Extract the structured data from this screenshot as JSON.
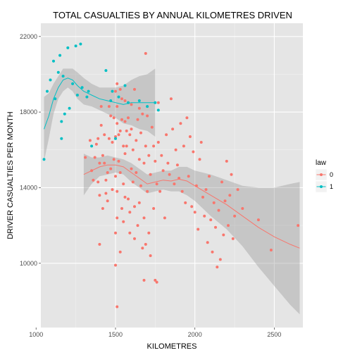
{
  "chart_data": {
    "type": "scatter",
    "title": "TOTAL CASUALTIES BY ANNUAL KILOMETRES DRIVEN",
    "xlabel": "KILOMETRES",
    "ylabel": "DRIVER CASUALTIES PER MONTH",
    "xlim": [
      1030,
      2680
    ],
    "ylim": [
      6600,
      22700
    ],
    "x_ticks": [
      1000,
      1500,
      2000,
      2500
    ],
    "x_tick_labels": [
      "1000",
      "1500",
      "2000",
      "2500"
    ],
    "y_ticks": [
      10000,
      14000,
      18000,
      22000
    ],
    "y_tick_labels": [
      "10000",
      "14000",
      "18000",
      "22000"
    ],
    "grid": true,
    "legend": {
      "title": "law",
      "position": "right",
      "entries": [
        {
          "label": "0",
          "color": "#f8766d"
        },
        {
          "label": "1",
          "color": "#00bfc4"
        }
      ]
    },
    "series": [
      {
        "name": "0",
        "color": "#f8766d",
        "points": [
          [
            1310,
            15600
          ],
          [
            1340,
            16500
          ],
          [
            1350,
            14900
          ],
          [
            1360,
            14400
          ],
          [
            1370,
            15600
          ],
          [
            1380,
            16300
          ],
          [
            1390,
            16600
          ],
          [
            1390,
            14300
          ],
          [
            1400,
            13600
          ],
          [
            1400,
            15300
          ],
          [
            1410,
            17300
          ],
          [
            1410,
            18300
          ],
          [
            1420,
            12900
          ],
          [
            1420,
            15700
          ],
          [
            1430,
            16800
          ],
          [
            1430,
            15300
          ],
          [
            1440,
            14400
          ],
          [
            1440,
            13700
          ],
          [
            1450,
            13300
          ],
          [
            1450,
            14800
          ],
          [
            1460,
            16600
          ],
          [
            1460,
            18300
          ],
          [
            1470,
            17800
          ],
          [
            1470,
            15000
          ],
          [
            1480,
            13900
          ],
          [
            1480,
            16400
          ],
          [
            1490,
            17700
          ],
          [
            1490,
            15500
          ],
          [
            1500,
            19100
          ],
          [
            1500,
            14600
          ],
          [
            1500,
            11600
          ],
          [
            1500,
            16700
          ],
          [
            1510,
            18300
          ],
          [
            1510,
            17400
          ],
          [
            1510,
            19500
          ],
          [
            1510,
            13800
          ],
          [
            1510,
            12400
          ],
          [
            1520,
            16800
          ],
          [
            1520,
            15400
          ],
          [
            1530,
            19200
          ],
          [
            1530,
            17000
          ],
          [
            1530,
            14800
          ],
          [
            1540,
            17600
          ],
          [
            1540,
            18700
          ],
          [
            1540,
            12900
          ],
          [
            1550,
            16200
          ],
          [
            1550,
            14200
          ],
          [
            1550,
            12200
          ],
          [
            1560,
            18600
          ],
          [
            1560,
            17500
          ],
          [
            1560,
            15800
          ],
          [
            1560,
            13500
          ],
          [
            1570,
            17000
          ],
          [
            1570,
            16200
          ],
          [
            1580,
            18500
          ],
          [
            1580,
            17700
          ],
          [
            1580,
            13400
          ],
          [
            1590,
            16800
          ],
          [
            1590,
            11600
          ],
          [
            1590,
            12700
          ],
          [
            1600,
            18400
          ],
          [
            1600,
            17100
          ],
          [
            1600,
            15000
          ],
          [
            1610,
            16000
          ],
          [
            1610,
            14300
          ],
          [
            1620,
            19200
          ],
          [
            1620,
            13000
          ],
          [
            1620,
            11300
          ],
          [
            1630,
            16500
          ],
          [
            1630,
            14800
          ],
          [
            1640,
            17600
          ],
          [
            1640,
            12000
          ],
          [
            1650,
            18200
          ],
          [
            1650,
            15500
          ],
          [
            1650,
            13200
          ],
          [
            1660,
            16900
          ],
          [
            1660,
            14100
          ],
          [
            1670,
            17900
          ],
          [
            1670,
            10800
          ],
          [
            1680,
            15300
          ],
          [
            1680,
            12400
          ],
          [
            1690,
            21100
          ],
          [
            1690,
            16200
          ],
          [
            1700,
            17800
          ],
          [
            1700,
            13800
          ],
          [
            1710,
            15700
          ],
          [
            1710,
            11600
          ],
          [
            1720,
            14700
          ],
          [
            1720,
            10400
          ],
          [
            1730,
            17200
          ],
          [
            1740,
            16200
          ],
          [
            1740,
            12900
          ],
          [
            1750,
            15400
          ],
          [
            1760,
            14200
          ],
          [
            1770,
            18500
          ],
          [
            1770,
            16400
          ],
          [
            1780,
            13800
          ],
          [
            1790,
            15700
          ],
          [
            1800,
            14900
          ],
          [
            1810,
            12400
          ],
          [
            1820,
            16800
          ],
          [
            1830,
            15300
          ],
          [
            1840,
            14700
          ],
          [
            1850,
            18700
          ],
          [
            1860,
            17100
          ],
          [
            1870,
            14200
          ],
          [
            1880,
            16000
          ],
          [
            1890,
            15200
          ],
          [
            1900,
            14500
          ],
          [
            1910,
            17400
          ],
          [
            1920,
            13800
          ],
          [
            1930,
            16200
          ],
          [
            1940,
            13200
          ],
          [
            1950,
            17700
          ],
          [
            1960,
            14600
          ],
          [
            1970,
            16700
          ],
          [
            1980,
            13000
          ],
          [
            1990,
            15900
          ],
          [
            2000,
            12700
          ],
          [
            2010,
            14100
          ],
          [
            2020,
            11800
          ],
          [
            2030,
            15500
          ],
          [
            2040,
            16400
          ],
          [
            2050,
            13500
          ],
          [
            2060,
            12500
          ],
          [
            2070,
            13900
          ],
          [
            2080,
            11100
          ],
          [
            2090,
            14600
          ],
          [
            2100,
            12300
          ],
          [
            2110,
            10600
          ],
          [
            2120,
            13200
          ],
          [
            2130,
            11900
          ],
          [
            2140,
            9800
          ],
          [
            2150,
            12800
          ],
          [
            2160,
            10200
          ],
          [
            2170,
            14300
          ],
          [
            2180,
            11500
          ],
          [
            2190,
            13300
          ],
          [
            2200,
            15400
          ],
          [
            2210,
            12000
          ],
          [
            2220,
            13600
          ],
          [
            2230,
            14700
          ],
          [
            2240,
            11300
          ],
          [
            2250,
            12500
          ],
          [
            2270,
            13900
          ],
          [
            2300,
            12900
          ],
          [
            2400,
            12300
          ],
          [
            2480,
            10700
          ],
          [
            2650,
            12000
          ],
          [
            1500,
            9900
          ],
          [
            1510,
            7700
          ],
          [
            1680,
            9100
          ],
          [
            1750,
            9100
          ],
          [
            1760,
            9000
          ],
          [
            1690,
            11000
          ],
          [
            1530,
            10600
          ],
          [
            1400,
            11000
          ]
        ],
        "smooth": {
          "x": [
            1300,
            1350,
            1400,
            1450,
            1500,
            1550,
            1600,
            1650,
            1700,
            1750,
            1800,
            1850,
            1900,
            1950,
            2000,
            2100,
            2200,
            2300,
            2400,
            2500,
            2600,
            2660
          ],
          "y": [
            14700,
            14900,
            15100,
            15200,
            15200,
            15100,
            14800,
            14500,
            14200,
            14300,
            14400,
            14350,
            14450,
            14350,
            14100,
            13600,
            13100,
            12500,
            11900,
            11400,
            11000,
            10800
          ],
          "ymin": [
            13600,
            14200,
            14600,
            14700,
            14800,
            14700,
            14300,
            14000,
            13700,
            13800,
            13900,
            13800,
            13800,
            13600,
            13300,
            12500,
            11800,
            10900,
            9800,
            8800,
            7800,
            7300
          ],
          "ymax": [
            15800,
            15600,
            15600,
            15700,
            15600,
            15500,
            15300,
            15000,
            14700,
            14800,
            14900,
            14900,
            15100,
            15100,
            14900,
            14700,
            14400,
            14100,
            14000,
            14000,
            14200,
            14300
          ]
        }
      },
      {
        "name": "1",
        "color": "#00bfc4",
        "points": [
          [
            1050,
            15500
          ],
          [
            1070,
            19100
          ],
          [
            1090,
            19700
          ],
          [
            1110,
            20700
          ],
          [
            1120,
            18700
          ],
          [
            1140,
            20100
          ],
          [
            1150,
            21000
          ],
          [
            1160,
            16600
          ],
          [
            1160,
            17500
          ],
          [
            1170,
            19900
          ],
          [
            1180,
            17900
          ],
          [
            1200,
            21400
          ],
          [
            1210,
            18200
          ],
          [
            1230,
            19500
          ],
          [
            1250,
            21500
          ],
          [
            1260,
            18900
          ],
          [
            1280,
            21600
          ],
          [
            1290,
            19300
          ],
          [
            1320,
            18800
          ],
          [
            1330,
            19100
          ],
          [
            1350,
            16200
          ],
          [
            1440,
            20200
          ],
          [
            1470,
            18600
          ],
          [
            1480,
            19100
          ],
          [
            1500,
            16600
          ],
          [
            1520,
            18800
          ],
          [
            1560,
            19400
          ],
          [
            1580,
            18500
          ],
          [
            1650,
            18600
          ],
          [
            1700,
            18300
          ],
          [
            1750,
            18500
          ],
          [
            1770,
            18100
          ]
        ],
        "smooth": {
          "x": [
            1050,
            1080,
            1110,
            1140,
            1170,
            1200,
            1230,
            1260,
            1300,
            1350,
            1400,
            1450,
            1500,
            1550,
            1600,
            1650,
            1700,
            1750
          ],
          "y": [
            17100,
            17800,
            18700,
            19300,
            19700,
            19800,
            19700,
            19400,
            19100,
            18900,
            18700,
            18600,
            18500,
            18400,
            18500,
            18500,
            18500,
            18500
          ],
          "ymin": [
            15400,
            16600,
            17900,
            18700,
            19100,
            19300,
            19100,
            18700,
            18400,
            18300,
            18100,
            17900,
            17700,
            17400,
            17300,
            17100,
            17000,
            16700
          ],
          "ymax": [
            18800,
            19000,
            19500,
            19900,
            20300,
            20300,
            20300,
            20100,
            19800,
            19500,
            19300,
            19300,
            19300,
            19400,
            19700,
            19900,
            20000,
            20300
          ]
        }
      }
    ]
  }
}
